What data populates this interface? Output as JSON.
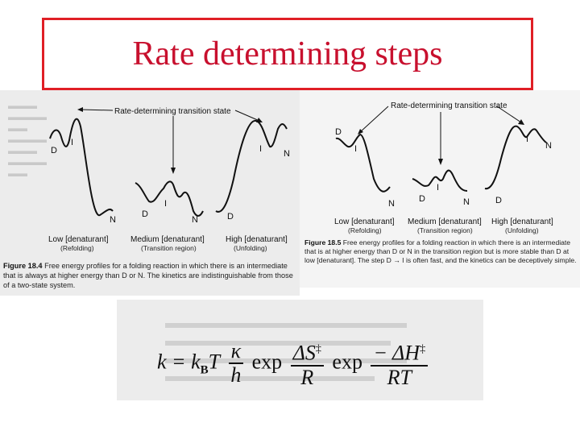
{
  "slide": {
    "title": "Rate determining steps"
  },
  "figure_left": {
    "arrow_label": "Rate-determining transition state",
    "states": {
      "D": "D",
      "I": "I",
      "N": "N"
    },
    "panels": [
      {
        "label": "Low [denaturant]",
        "sub": "(Refolding)"
      },
      {
        "label": "Medium [denaturant]",
        "sub": "(Transition region)"
      },
      {
        "label": "High [denaturant]",
        "sub": "(Unfolding)"
      }
    ],
    "caption_bold": "Figure 18.4",
    "caption": "Free energy profiles for a folding reaction in which there is an intermediate that is always at higher energy than D or N. The kinetics are indistinguishable from those of a two-state system."
  },
  "figure_right": {
    "arrow_label": "Rate-determining transition state",
    "panels": [
      {
        "label": "Low [denaturant]",
        "sub": "(Refolding)"
      },
      {
        "label": "Medium [denaturant]",
        "sub": "(Transition region)"
      },
      {
        "label": "High [denaturant]",
        "sub": "(Unfolding)"
      }
    ],
    "caption_bold": "Figure 18.5",
    "caption": "Free energy profiles for a folding reaction in which there is an intermediate that is at higher energy than D or N in the transition region but is more stable than D at low [denaturant]. The step D → I is often fast, and the kinetics can be deceptively simple."
  },
  "formula": {
    "lhs": "k = k",
    "sub_b": "B",
    "t": "T",
    "kappa": "κ",
    "h": "h",
    "exp": "exp",
    "num1": "ΔS",
    "dagger": "‡",
    "den1": "R",
    "num2": "− ΔH",
    "den2": "RT"
  }
}
